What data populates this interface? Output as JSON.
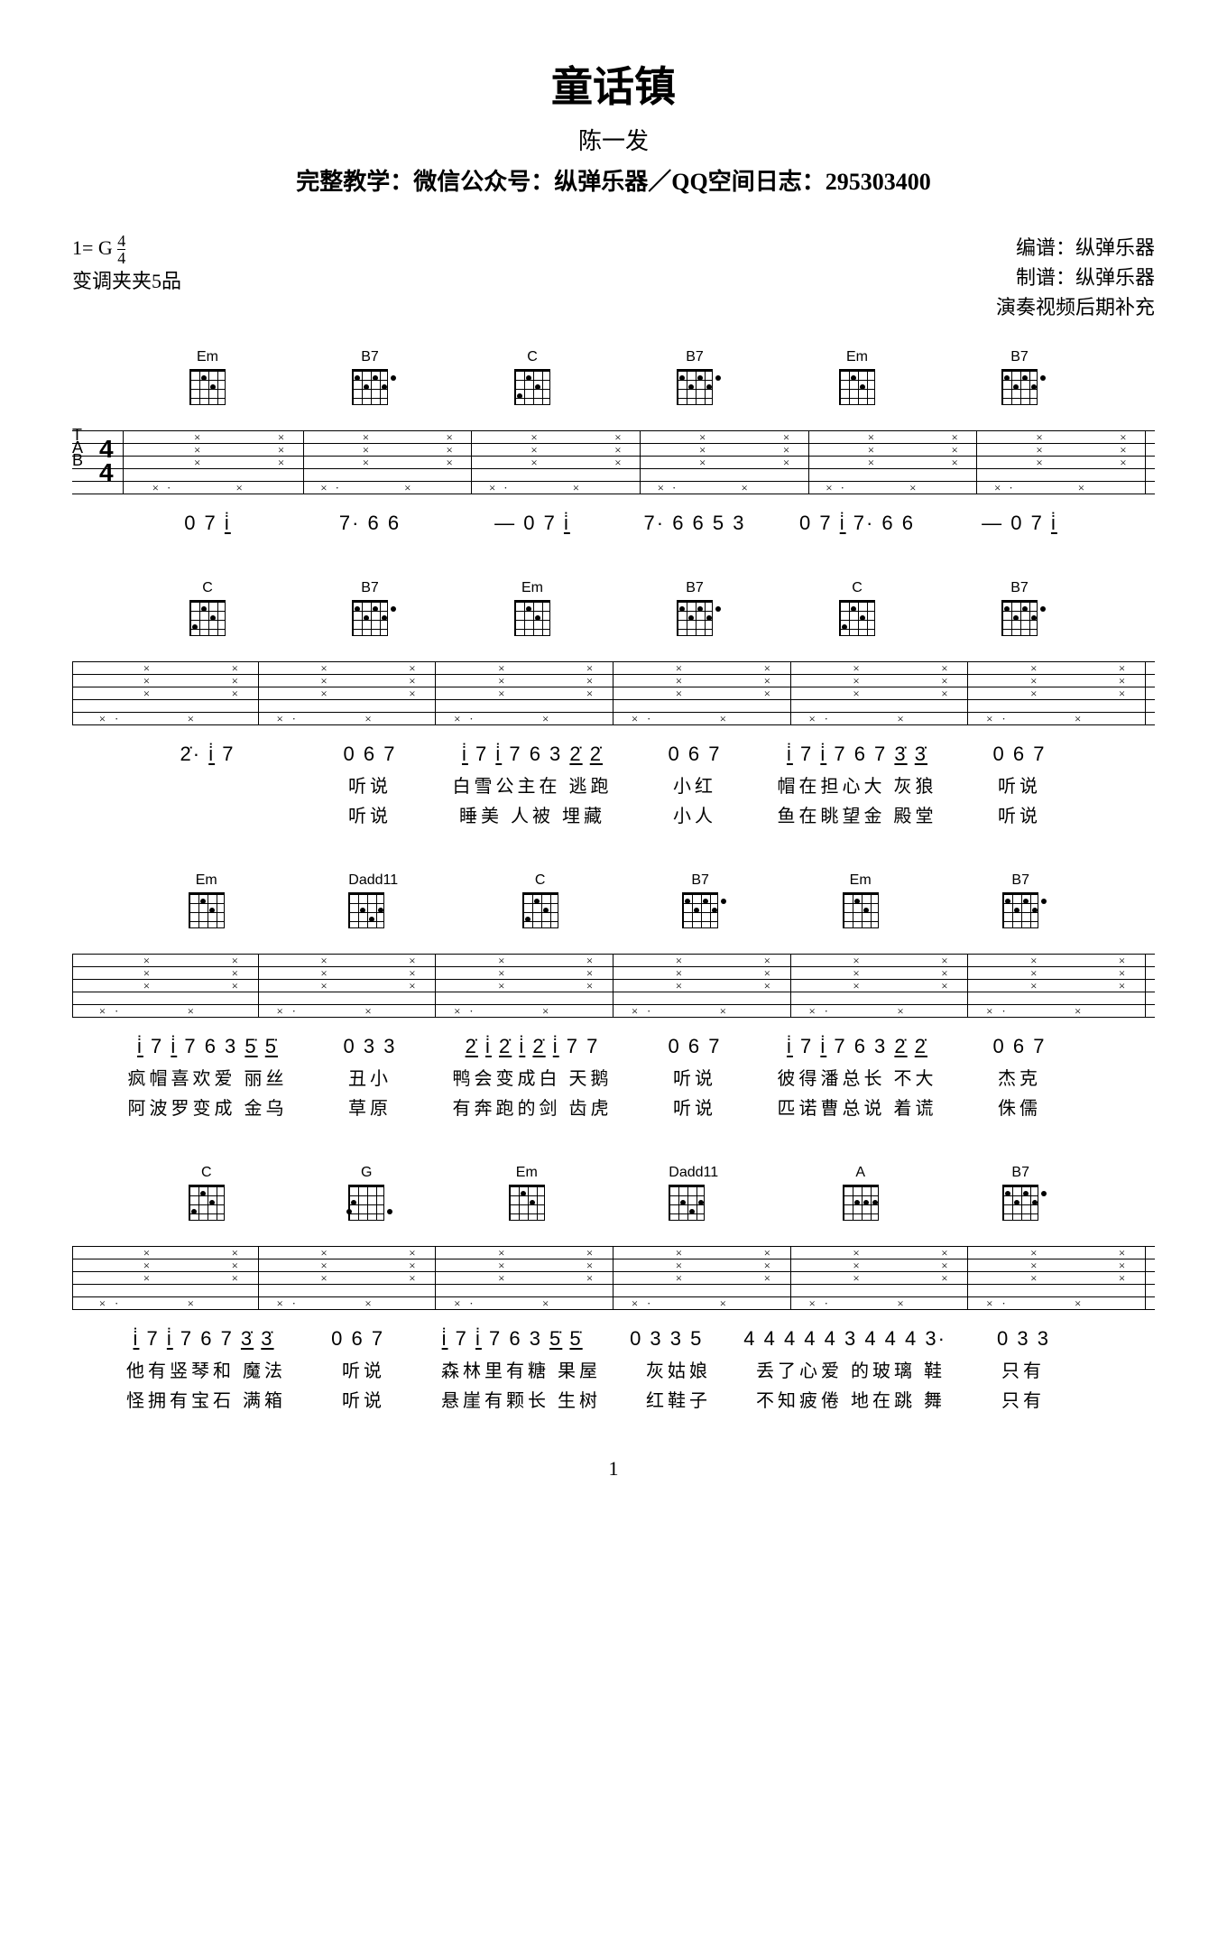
{
  "title": "童话镇",
  "artist": "陈一发",
  "tutorial": "完整教学：微信公众号：纵弹乐器／QQ空间日志：295303400",
  "key": "1= G",
  "timesig_top": "4",
  "timesig_bot": "4",
  "capo": "变调夹夹5品",
  "credit1": "编谱：纵弹乐器",
  "credit2": "制谱：纵弹乐器",
  "credit3": "演奏视频后期补充",
  "page_num": "1",
  "lines": [
    {
      "chords": [
        "Em",
        "B7",
        "C",
        "B7",
        "Em",
        "B7"
      ],
      "jianpu": [
        "0 7 i̇",
        "7· 6 6",
        "—  0 7 i̇",
        "7· 6 6 5 3",
        "0 7 i̇  7· 6 6",
        "—  0 7 i̇"
      ],
      "lyrics1": [
        "",
        "",
        "",
        "",
        "",
        ""
      ],
      "lyrics2": [
        "",
        "",
        "",
        "",
        "",
        ""
      ]
    },
    {
      "chords": [
        "C",
        "B7",
        "Em",
        "B7",
        "C",
        "B7"
      ],
      "jianpu": [
        "2̇·  i̇ 7",
        "0 6 7",
        "i̇ 7 i̇ 7 6  3 2̇ 2̇",
        "0 6 7",
        "i̇ 7 i̇ 7 6  7 3̇ 3̇",
        "0 6 7"
      ],
      "lyrics1": [
        "",
        "听说",
        "白雪公主在 逃跑",
        "小红",
        "帽在担心大 灰狼",
        "听说"
      ],
      "lyrics2": [
        "",
        "听说",
        "睡美  人被  埋藏",
        "小人",
        "鱼在眺望金 殿堂",
        "听说"
      ]
    },
    {
      "chords": [
        "Em",
        "Dadd11",
        "C",
        "B7",
        "Em",
        "B7"
      ],
      "jianpu": [
        "i̇ 7 i̇ 7 6  3 5̇ 5̇",
        "0 3 3",
        "2̇ i̇ 2̇ i̇ 2̇  i̇ 7 7",
        "0 6 7",
        "i̇ 7 i̇ 7 6  3 2̇ 2̇",
        "0 6 7"
      ],
      "lyrics1": [
        "疯帽喜欢爱 丽丝",
        "丑小",
        "鸭会变成白 天鹅",
        "听说",
        "彼得潘总长 不大",
        "杰克"
      ],
      "lyrics2": [
        "阿波罗变成 金乌",
        "草原",
        "有奔跑的剑 齿虎",
        "听说",
        "匹诺曹总说 着谎",
        "侏儒"
      ]
    },
    {
      "chords": [
        "C",
        "G",
        "Em",
        "Dadd11",
        "A",
        "B7"
      ],
      "jianpu": [
        "i̇ 7 i̇ 7 6  7 3̇ 3̇",
        "0 6 7",
        "i̇ 7 i̇ 7 6  3 5̇ 5̇",
        "0 3 3 5",
        "4 4 4 4 4 3 4 4 4 3·",
        "0 3 3"
      ],
      "lyrics1": [
        "他有竖琴和 魔法",
        "听说",
        "森林里有糖 果屋",
        "灰姑娘",
        "丢了心爱  的玻璃  鞋",
        "只有"
      ],
      "lyrics2": [
        "怪拥有宝石 满箱",
        "听说",
        "悬崖有颗长 生树",
        "红鞋子",
        "不知疲倦  地在跳  舞",
        "只有"
      ]
    }
  ]
}
